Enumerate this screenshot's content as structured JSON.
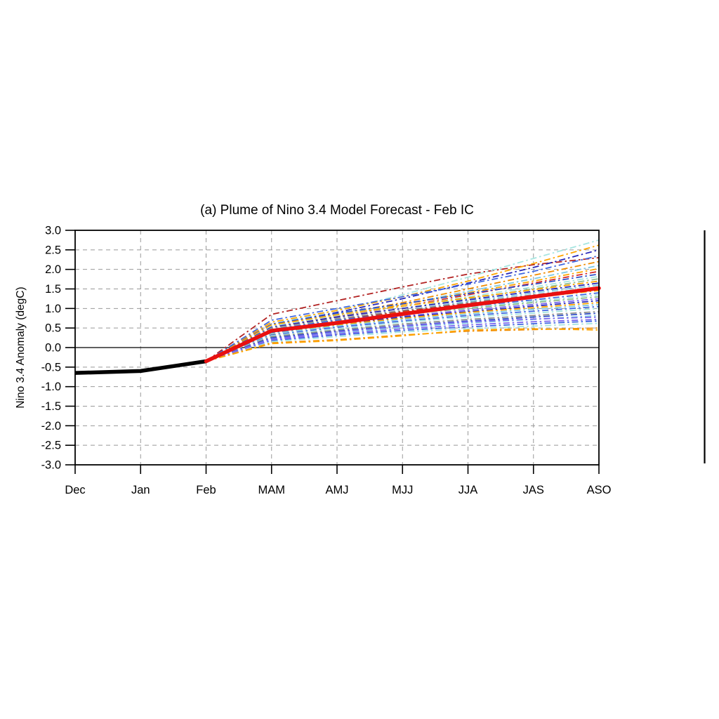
{
  "page": {
    "background": "#ffffff"
  },
  "chart_data": {
    "type": "line",
    "title": "(a) Plume of Nino 3.4 Model Forecast - Feb IC",
    "xlabel": "",
    "ylabel": "Nino 3.4 Anomaly (degC)",
    "x_categories": [
      "Dec",
      "Jan",
      "Feb",
      "MAM",
      "AMJ",
      "MJJ",
      "JJA",
      "JAS",
      "ASO"
    ],
    "ylim": [
      -3.0,
      3.0
    ],
    "ytick_step": 0.5,
    "ytick_labels": [
      "-3.0",
      "-2.5",
      "-2.0",
      "-1.5",
      "-1.0",
      "-0.5",
      "0.0",
      "0.5",
      "1.0",
      "1.5",
      "2.0",
      "2.5",
      "3.0"
    ],
    "grid": {
      "shown": true,
      "style": "dashed",
      "color": "#999999",
      "zero_line": true,
      "zero_line_color": "#000000"
    },
    "legend_position": "none",
    "colors": {
      "observed": "#000000",
      "ensemble_mean": "#E81010",
      "axis": "#000000"
    },
    "observed": {
      "name": "observed-nino34",
      "color": "#000000",
      "x": [
        "Dec",
        "Jan",
        "Feb"
      ],
      "values": [
        -0.65,
        -0.6,
        -0.35
      ]
    },
    "ensemble_mean": {
      "name": "forecast-ensemble-mean",
      "color": "#E81010",
      "x": [
        "Feb",
        "MAM",
        "AMJ",
        "MJJ",
        "JJA",
        "JAS",
        "ASO"
      ],
      "values": [
        -0.35,
        0.43,
        0.63,
        0.86,
        1.08,
        1.3,
        1.52
      ]
    },
    "members_x": [
      "Feb",
      "MAM",
      "AMJ",
      "MJJ",
      "JJA",
      "JAS",
      "ASO"
    ],
    "members_style": "dash-dot",
    "members": [
      {
        "color": "#B22222",
        "values": [
          -0.35,
          0.85,
          1.2,
          1.55,
          1.88,
          2.12,
          2.3
        ]
      },
      {
        "color": "#A5E5E0",
        "values": [
          -0.35,
          0.6,
          0.95,
          1.35,
          1.8,
          2.28,
          2.75
        ]
      },
      {
        "color": "#FFA500",
        "values": [
          -0.35,
          0.65,
          0.95,
          1.3,
          1.7,
          2.15,
          2.62
        ]
      },
      {
        "color": "#2828B8",
        "values": [
          -0.35,
          0.58,
          0.9,
          1.25,
          1.65,
          2.05,
          2.5
        ]
      },
      {
        "color": "#4169E1",
        "values": [
          -0.35,
          0.7,
          1.0,
          1.3,
          1.62,
          1.95,
          2.35
        ]
      },
      {
        "color": "#F08C00",
        "values": [
          -0.35,
          0.55,
          0.85,
          1.15,
          1.5,
          1.85,
          2.2
        ]
      },
      {
        "color": "#7EC8E3",
        "values": [
          -0.35,
          0.6,
          0.86,
          1.1,
          1.44,
          1.76,
          2.1
        ]
      },
      {
        "color": "#FFA500",
        "values": [
          -0.35,
          0.5,
          0.8,
          1.1,
          1.4,
          1.7,
          2.02
        ]
      },
      {
        "color": "#D42A2A",
        "values": [
          -0.35,
          0.55,
          0.8,
          1.05,
          1.35,
          1.65,
          1.95
        ]
      },
      {
        "color": "#3050C8",
        "values": [
          -0.35,
          0.6,
          0.88,
          1.12,
          1.38,
          1.62,
          1.88
        ]
      },
      {
        "color": "#A5E5E0",
        "values": [
          -0.35,
          0.55,
          0.82,
          1.05,
          1.3,
          1.55,
          1.82
        ]
      },
      {
        "color": "#8FBC8F",
        "values": [
          -0.35,
          0.5,
          0.78,
          1.0,
          1.25,
          1.5,
          1.76
        ]
      },
      {
        "color": "#FFA500",
        "values": [
          -0.35,
          0.58,
          0.84,
          1.06,
          1.27,
          1.48,
          1.7
        ]
      },
      {
        "color": "#2828B8",
        "values": [
          -0.35,
          0.52,
          0.78,
          1.0,
          1.22,
          1.44,
          1.65
        ]
      },
      {
        "color": "#7EC8E3",
        "values": [
          -0.35,
          0.48,
          0.72,
          0.95,
          1.18,
          1.4,
          1.6
        ]
      },
      {
        "color": "#909090",
        "values": [
          -0.35,
          0.5,
          0.74,
          0.95,
          1.15,
          1.35,
          1.55
        ]
      },
      {
        "color": "#B22222",
        "values": [
          -0.35,
          0.45,
          0.7,
          0.92,
          1.12,
          1.32,
          1.5
        ]
      },
      {
        "color": "#FFA500",
        "values": [
          -0.35,
          0.42,
          0.68,
          0.9,
          1.1,
          1.28,
          1.46
        ]
      },
      {
        "color": "#4169E1",
        "values": [
          -0.35,
          0.46,
          0.7,
          0.88,
          1.05,
          1.22,
          1.4
        ]
      },
      {
        "color": "#A5E5E0",
        "values": [
          -0.35,
          0.4,
          0.65,
          0.85,
          1.02,
          1.18,
          1.35
        ]
      },
      {
        "color": "#8FBC8F",
        "values": [
          -0.35,
          0.44,
          0.66,
          0.85,
          1.0,
          1.15,
          1.3
        ]
      },
      {
        "color": "#7B68EE",
        "values": [
          -0.35,
          0.4,
          0.62,
          0.8,
          0.96,
          1.1,
          1.25
        ]
      },
      {
        "color": "#2828B8",
        "values": [
          -0.35,
          0.38,
          0.6,
          0.78,
          0.92,
          1.06,
          1.2
        ]
      },
      {
        "color": "#FFA500",
        "values": [
          -0.35,
          0.35,
          0.58,
          0.75,
          0.9,
          1.02,
          1.15
        ]
      },
      {
        "color": "#7EC8E3",
        "values": [
          -0.35,
          0.36,
          0.55,
          0.72,
          0.86,
          0.98,
          1.1
        ]
      },
      {
        "color": "#4169E1",
        "values": [
          -0.35,
          0.32,
          0.52,
          0.68,
          0.82,
          0.93,
          1.05
        ]
      },
      {
        "color": "#A5E5E0",
        "values": [
          -0.35,
          0.3,
          0.48,
          0.65,
          0.78,
          0.88,
          1.0
        ]
      },
      {
        "color": "#909090",
        "values": [
          -0.35,
          0.28,
          0.45,
          0.6,
          0.72,
          0.82,
          0.92
        ]
      },
      {
        "color": "#3050C8",
        "values": [
          -0.35,
          0.25,
          0.42,
          0.56,
          0.68,
          0.78,
          0.88
        ]
      },
      {
        "color": "#7EC8E3",
        "values": [
          -0.35,
          0.22,
          0.38,
          0.52,
          0.63,
          0.72,
          0.82
        ]
      },
      {
        "color": "#7B68EE",
        "values": [
          -0.35,
          0.22,
          0.4,
          0.55,
          0.66,
          0.73,
          0.78
        ]
      },
      {
        "color": "#4169E1",
        "values": [
          -0.35,
          0.18,
          0.32,
          0.44,
          0.53,
          0.61,
          0.68
        ]
      },
      {
        "color": "#A5E5E0",
        "values": [
          -0.35,
          0.15,
          0.28,
          0.4,
          0.48,
          0.55,
          0.62
        ]
      },
      {
        "color": "#7B68EE",
        "values": [
          -0.35,
          0.2,
          0.35,
          0.48,
          0.58,
          0.66,
          0.72
        ]
      },
      {
        "color": "#F08C00",
        "values": [
          -0.35,
          0.12,
          0.2,
          0.32,
          0.42,
          0.46,
          0.5
        ]
      },
      {
        "color": "#FFA500",
        "values": [
          -0.35,
          0.1,
          0.18,
          0.3,
          0.45,
          0.48,
          0.45
        ]
      }
    ]
  }
}
